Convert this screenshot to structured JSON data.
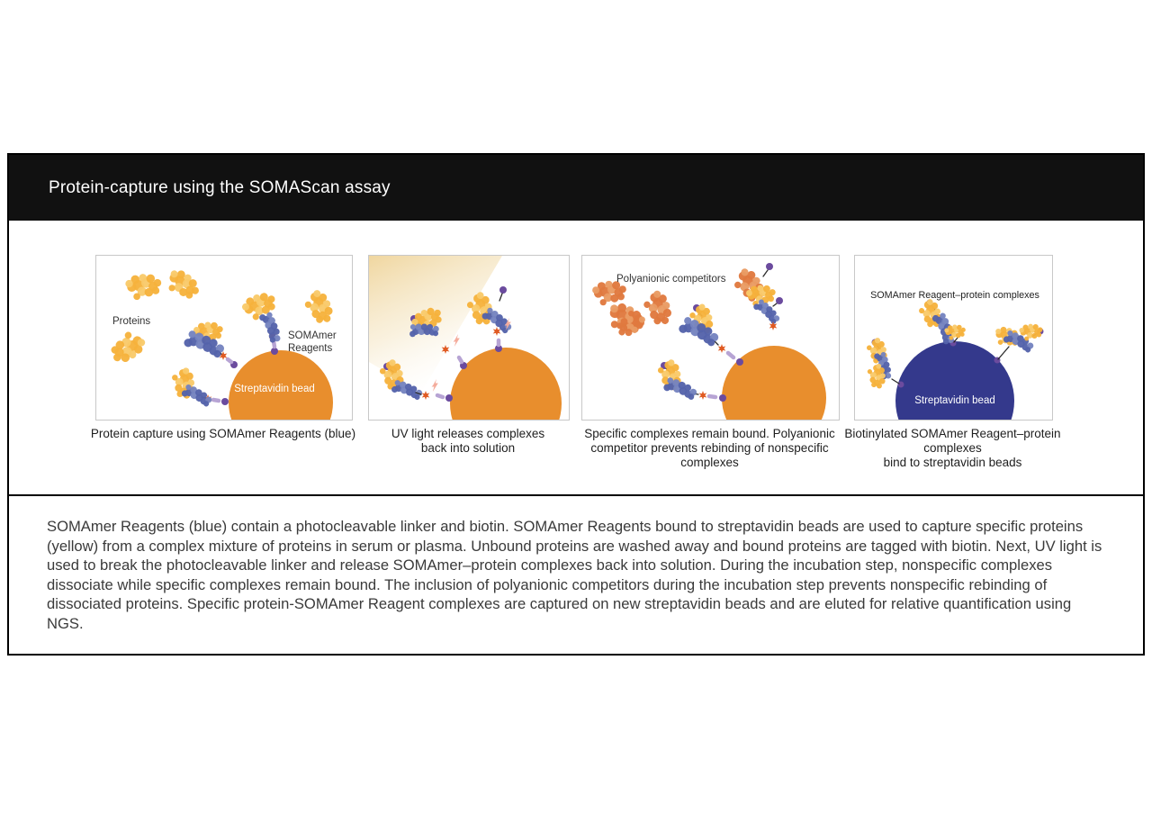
{
  "header": {
    "title": "Protein-capture using the SOMAScan assay"
  },
  "panels": [
    {
      "labels": {
        "proteins": "Proteins",
        "somamer_1": "SOMAmer",
        "somamer_2": "Reagents",
        "bead": "Streptavidin bead"
      },
      "caption_lines": [
        "Protein capture using SOMAmer Reagents (blue)"
      ]
    },
    {
      "caption_lines": [
        "UV light releases complexes",
        "back into solution"
      ]
    },
    {
      "labels": {
        "competitors": "Polyanionic competitors"
      },
      "caption_lines": [
        "Specific complexes remain bound. Polyanionic",
        "competitor prevents rebinding of nonspecific",
        "complexes"
      ]
    },
    {
      "labels": {
        "complexes": "SOMAmer Reagent–protein complexes",
        "bead": "Streptavidin bead"
      },
      "caption_lines": [
        "Biotinylated SOMAmer Reagent–protein",
        "complexes",
        "bind to streptavidin beads"
      ]
    }
  ],
  "description": "SOMAmer Reagents (blue) contain a photocleavable linker and biotin. SOMAmer Reagents bound to streptavidin beads are used to capture specific proteins (yellow) from a complex mixture of proteins in serum or plasma. Unbound proteins are washed away and bound proteins are tagged with biotin. Next, UV light is used to break the photocleavable linker and release SOMAmer–protein complexes back into solution. During the incubation step, nonspecific complexes dissociate while specific complexes remain bound. The inclusion of polyanionic competitors during the incubation step prevents nonspecific rebinding of dissociated proteins. Specific protein-SOMAmer Reagent complexes are captured on new streptavidin beads and are eluted for relative quantification using NGS.",
  "palette": {
    "protein_yellow": "#F6B23C",
    "protein_yellow_light": "#F9CA6A",
    "somamer_blue": "#5463AB",
    "somamer_blue_light": "#7583BF",
    "streptavidin_orange": "#E88E2D",
    "streptavidin_navy": "#34398C",
    "competitor_orange": "#E0793E",
    "competitor_orange_light": "#E99B63",
    "linker_purple": "#6B4B9E",
    "linker_lilac": "#B7A4D4",
    "biotin_red": "#E05A22",
    "lightning_pink": "#F4AC9C",
    "uv_beam": "#EFD49A",
    "header_bg": "#111111",
    "header_text": "#FFFFFF"
  }
}
